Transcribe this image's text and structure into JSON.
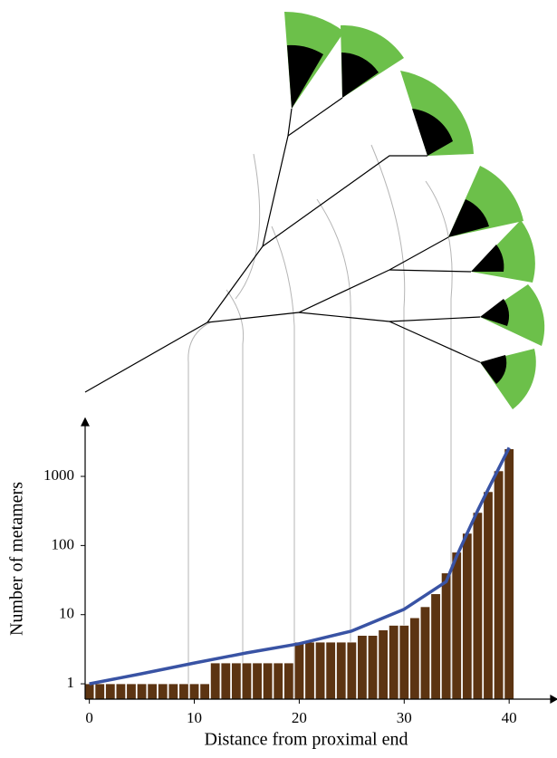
{
  "chart_data": {
    "type": "bar",
    "log_y": true,
    "x_label": "Distance from proximal end",
    "y_label": "Number of metamers",
    "x": [
      0,
      1,
      2,
      3,
      4,
      5,
      6,
      7,
      8,
      9,
      10,
      11,
      12,
      13,
      14,
      15,
      16,
      17,
      18,
      19,
      20,
      21,
      22,
      23,
      24,
      25,
      26,
      27,
      28,
      29,
      30,
      31,
      32,
      33,
      34,
      35,
      36,
      37,
      38,
      39,
      40
    ],
    "values": [
      1,
      1,
      1,
      1,
      1,
      1,
      1,
      1,
      1,
      1,
      1,
      1,
      2,
      2,
      2,
      2,
      2,
      2,
      2,
      2,
      4,
      4,
      4,
      4,
      4,
      4,
      5,
      5,
      6,
      7,
      7,
      9,
      13,
      20,
      40,
      80,
      150,
      300,
      600,
      1200,
      2500
    ],
    "color": "#5c3412",
    "line": {
      "color": "#3953a4",
      "x": [
        0,
        5,
        10,
        15,
        20,
        25,
        30,
        34,
        35,
        36,
        37,
        38,
        39,
        40
      ],
      "values": [
        1,
        1.4,
        2,
        2.8,
        3.8,
        5.8,
        12,
        30,
        70,
        150,
        320,
        650,
        1300,
        2600
      ]
    },
    "xlim": [
      -0.4,
      44.3
    ],
    "ylim": [
      0.6,
      6300
    ],
    "xticks": [
      0,
      10,
      20,
      30,
      40
    ],
    "yticks": [
      1,
      10,
      100,
      1000
    ]
  }
}
